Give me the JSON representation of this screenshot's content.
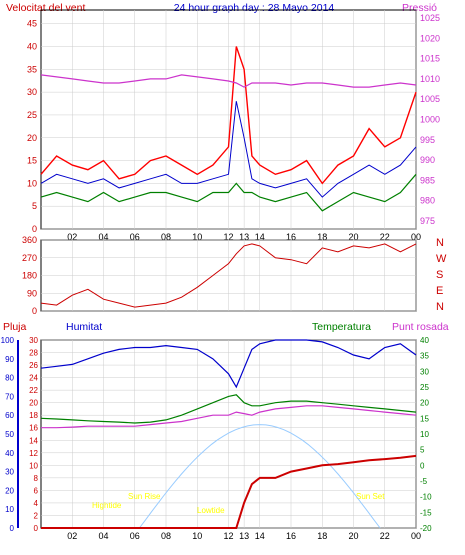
{
  "header": {
    "left_label": "Velocitat del vent",
    "title": "24 hour graph day : 28 Mayo 2014",
    "right_label": "Pressió"
  },
  "colors": {
    "wind": "#ff0000",
    "gust": "#0000cc",
    "wind2": "#008000",
    "pressure": "#cc33cc",
    "direction": "#cc0000",
    "rain": "#cc0000",
    "humidity": "#0000cc",
    "temperature": "#008000",
    "dewpoint": "#cc33cc",
    "sun": "#99ccff",
    "sun_text": "#ffff00",
    "grid": "#cccccc"
  },
  "chart_data": [
    {
      "type": "line",
      "id": "wind_pressure",
      "x_ticks": [
        "02",
        "04",
        "06",
        "08",
        "10",
        "12",
        "13",
        "14",
        "16",
        "18",
        "20",
        "22",
        "00"
      ],
      "wind_axis": {
        "label": "Velocitat del vent",
        "ticks": [
          "0",
          "5",
          "10",
          "15",
          "20",
          "25",
          "30",
          "35",
          "40",
          "45"
        ],
        "range": [
          0,
          48
        ]
      },
      "pressure_axis": {
        "label": "Pressió",
        "ticks": [
          "975",
          "980",
          "985",
          "990",
          "995",
          "1000",
          "1005",
          "1010",
          "1015",
          "1020",
          "1025"
        ],
        "range": [
          973,
          1027
        ]
      },
      "x_hours": [
        0,
        1,
        2,
        3,
        4,
        5,
        6,
        7,
        8,
        9,
        10,
        11,
        12,
        12.5,
        13,
        13.5,
        14,
        15,
        16,
        17,
        18,
        19,
        20,
        21,
        22,
        23,
        24
      ],
      "wind_gust": [
        12,
        16,
        14,
        13,
        15,
        11,
        12,
        15,
        16,
        14,
        12,
        14,
        18,
        40,
        35,
        16,
        14,
        12,
        13,
        15,
        10,
        14,
        16,
        22,
        18,
        20,
        30
      ],
      "wind_avg": [
        10,
        12,
        11,
        10,
        11,
        9,
        10,
        11,
        12,
        10,
        10,
        11,
        12,
        28,
        20,
        11,
        10,
        9,
        10,
        11,
        7,
        10,
        12,
        14,
        12,
        14,
        18
      ],
      "wind_low": [
        7,
        8,
        7,
        6,
        8,
        6,
        7,
        8,
        8,
        7,
        6,
        8,
        8,
        10,
        8,
        8,
        7,
        6,
        7,
        8,
        4,
        6,
        8,
        7,
        6,
        8,
        12
      ],
      "pressure": [
        1011,
        1010.5,
        1010,
        1009.5,
        1009,
        1009,
        1009.5,
        1010,
        1010,
        1011,
        1010.5,
        1010,
        1009.5,
        1009,
        1008,
        1009,
        1009,
        1009,
        1008.5,
        1009,
        1009,
        1008.5,
        1008,
        1008,
        1008.5,
        1009,
        1008.5
      ]
    },
    {
      "type": "line",
      "id": "wind_direction",
      "y_ticks": [
        "360",
        "270",
        "180",
        "90",
        "0"
      ],
      "direction_labels": [
        "N",
        "W",
        "S",
        "E",
        "N"
      ],
      "range": [
        0,
        360
      ],
      "x_hours": [
        0,
        1,
        2,
        3,
        4,
        5,
        6,
        7,
        8,
        9,
        10,
        11,
        12,
        12.5,
        13,
        13.5,
        14,
        15,
        16,
        17,
        18,
        19,
        20,
        21,
        22,
        23,
        24
      ],
      "direction": [
        40,
        30,
        80,
        110,
        60,
        40,
        20,
        30,
        40,
        70,
        120,
        180,
        240,
        290,
        330,
        340,
        330,
        270,
        260,
        240,
        320,
        300,
        330,
        320,
        340,
        300,
        340
      ]
    },
    {
      "type": "line",
      "id": "rain_humidity_temperature",
      "legend": [
        "Pluja",
        "Humitat",
        "Temperatura",
        "Punt rosada"
      ],
      "rain_axis": {
        "ticks": [
          "0",
          "2",
          "4",
          "6",
          "8",
          "10",
          "12",
          "14",
          "16",
          "18",
          "20",
          "22",
          "24",
          "26",
          "28",
          "30"
        ],
        "range": [
          0,
          30
        ]
      },
      "humidity_axis": {
        "ticks": [
          "0",
          "10",
          "20",
          "30",
          "40",
          "50",
          "60",
          "70",
          "80",
          "90",
          "100"
        ],
        "range": [
          0,
          100
        ]
      },
      "temperature_axis": {
        "ticks": [
          "-20",
          "-15",
          "-10",
          "-5",
          "0",
          "5",
          "10",
          "15",
          "20",
          "25",
          "30",
          "35",
          "40"
        ],
        "range": [
          -20,
          40
        ]
      },
      "x_hours": [
        0,
        1,
        2,
        3,
        4,
        5,
        6,
        7,
        8,
        9,
        10,
        11,
        12,
        12.5,
        13,
        13.5,
        14,
        15,
        16,
        17,
        18,
        19,
        20,
        21,
        22,
        23,
        24
      ],
      "humidity": [
        85,
        86,
        87,
        90,
        93,
        95,
        96,
        96,
        97,
        96,
        95,
        90,
        82,
        75,
        85,
        95,
        98,
        100,
        100,
        100,
        99,
        96,
        92,
        90,
        96,
        98,
        92
      ],
      "temperature": [
        15,
        14.8,
        14.5,
        14.2,
        14,
        13.8,
        13.5,
        13.8,
        14.5,
        16,
        18,
        20,
        22,
        22.5,
        20,
        19,
        19,
        20,
        20.5,
        20.5,
        20,
        19.5,
        19,
        18.5,
        18,
        17.5,
        17
      ],
      "dew_point": [
        12,
        12,
        12.2,
        12.5,
        12.5,
        12.5,
        12.5,
        13,
        13.5,
        14,
        15,
        16,
        16,
        17,
        16.5,
        16,
        17,
        18,
        18.5,
        19,
        19,
        18.5,
        18,
        17.5,
        17,
        16.5,
        16
      ],
      "rain_cumulative": [
        0,
        0,
        0,
        0,
        0,
        0,
        0,
        0,
        0,
        0,
        0,
        0,
        0,
        0,
        4,
        7,
        8,
        8,
        9,
        9.5,
        10,
        10.2,
        10.5,
        10.8,
        11,
        11.2,
        11.5
      ],
      "annotations": [
        "Sun Rise",
        "Sun Set",
        "Lowtide",
        "Hightide"
      ]
    }
  ]
}
